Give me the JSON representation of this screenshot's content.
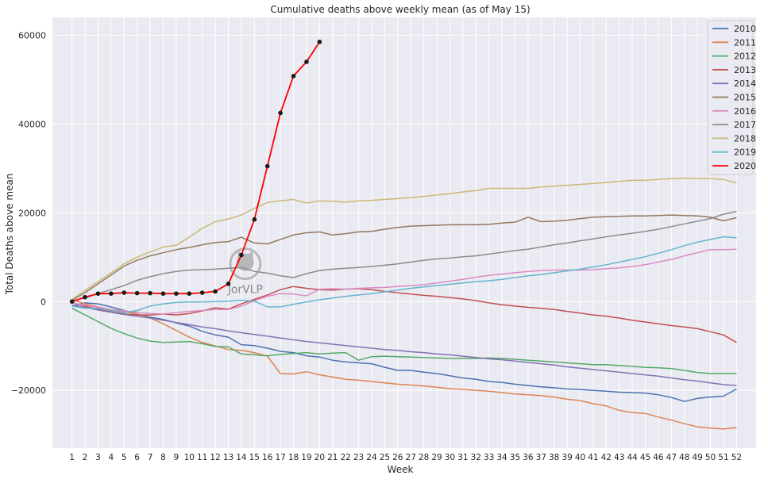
{
  "chart_data": {
    "type": "line",
    "title": "Cumulative deaths above weekly mean (as of May 15)",
    "xlabel": "Week",
    "ylabel": "Total Deaths above mean",
    "xlim": [
      -0.5,
      53.5
    ],
    "ylim": [
      -33000,
      64000
    ],
    "yticks": [
      -20000,
      0,
      20000,
      40000,
      60000
    ],
    "ytick_labels": [
      "−20000",
      "0",
      "20000",
      "40000",
      "60000"
    ],
    "grid": true,
    "legend_position": "top-right",
    "watermark": "JorVLP",
    "series": [
      {
        "name": "2010",
        "color": "#4c72b0",
        "x_start": 1,
        "values": [
          -1000,
          -300,
          -500,
          -1200,
          -2000,
          -2800,
          -3500,
          -4000,
          -4800,
          -5500,
          -6700,
          -7500,
          -8000,
          -9700,
          -9900,
          -10500,
          -11200,
          -11500,
          -12200,
          -12500,
          -13200,
          -13600,
          -13800,
          -14000,
          -14800,
          -15500,
          -15500,
          -15900,
          -16200,
          -16700,
          -17200,
          -17500,
          -18000,
          -18200,
          -18600,
          -18900,
          -19200,
          -19400,
          -19700,
          -19800,
          -20000,
          -20200,
          -20400,
          -20500,
          -20600,
          -21000,
          -21600,
          -22500,
          -21800,
          -21500,
          -21300,
          -19700
        ]
      },
      {
        "name": "2011",
        "color": "#dd8452",
        "x_start": 1,
        "values": [
          500,
          -500,
          -1200,
          -1800,
          -2300,
          -2800,
          -3700,
          -5000,
          -6500,
          -8000,
          -9200,
          -10000,
          -10800,
          -11000,
          -11500,
          -12300,
          -16200,
          -16300,
          -15800,
          -16500,
          -17000,
          -17500,
          -17700,
          -18000,
          -18300,
          -18600,
          -18800,
          -19000,
          -19300,
          -19600,
          -19800,
          -20000,
          -20200,
          -20500,
          -20800,
          -21000,
          -21200,
          -21500,
          -22000,
          -22300,
          -23000,
          -23500,
          -24500,
          -25000,
          -25200,
          -26000,
          -26700,
          -27500,
          -28200,
          -28500,
          -28700,
          -28400
        ]
      },
      {
        "name": "2012",
        "color": "#55a868",
        "x_start": 1,
        "values": [
          -1500,
          -3000,
          -4500,
          -6000,
          -7200,
          -8200,
          -8900,
          -9200,
          -9100,
          -9000,
          -9500,
          -10100,
          -10200,
          -11800,
          -12000,
          -12200,
          -11900,
          -11700,
          -11500,
          -11800,
          -11600,
          -11500,
          -13200,
          -12400,
          -12300,
          -12400,
          -12500,
          -12600,
          -12700,
          -12800,
          -12800,
          -12800,
          -12700,
          -12800,
          -13000,
          -13200,
          -13400,
          -13600,
          -13800,
          -14000,
          -14200,
          -14200,
          -14400,
          -14600,
          -14800,
          -14900,
          -15100,
          -15500,
          -16000,
          -16200,
          -16200,
          -16200
        ]
      },
      {
        "name": "2013",
        "color": "#c44e52",
        "x_start": 1,
        "values": [
          -200,
          -1000,
          -1800,
          -2300,
          -2800,
          -3000,
          -3000,
          -2800,
          -3000,
          -2700,
          -2100,
          -1400,
          -1700,
          -500,
          500,
          1500,
          2700,
          3400,
          3000,
          2700,
          2600,
          2800,
          2900,
          2700,
          2300,
          2000,
          1700,
          1400,
          1200,
          900,
          600,
          200,
          -300,
          -700,
          -1000,
          -1300,
          -1500,
          -1800,
          -2200,
          -2600,
          -3000,
          -3300,
          -3700,
          -4200,
          -4600,
          -5000,
          -5400,
          -5700,
          -6100,
          -6800,
          -7500,
          -9200
        ]
      },
      {
        "name": "2014",
        "color": "#8172b3",
        "x_start": 1,
        "values": [
          -800,
          -1300,
          -1900,
          -2400,
          -2900,
          -3300,
          -3700,
          -4200,
          -4700,
          -5200,
          -5700,
          -6100,
          -6600,
          -7000,
          -7400,
          -7800,
          -8200,
          -8600,
          -9000,
          -9300,
          -9600,
          -9900,
          -10200,
          -10500,
          -10800,
          -11000,
          -11300,
          -11500,
          -11800,
          -12000,
          -12300,
          -12600,
          -12900,
          -13100,
          -13400,
          -13700,
          -14000,
          -14300,
          -14700,
          -15000,
          -15300,
          -15600,
          -15900,
          -16200,
          -16500,
          -16800,
          -17200,
          -17600,
          -17900,
          -18300,
          -18700,
          -18900
        ]
      },
      {
        "name": "2015",
        "color": "#937860",
        "x_start": 1,
        "values": [
          300,
          2000,
          4000,
          6000,
          8000,
          9300,
          10300,
          11000,
          11700,
          12200,
          12800,
          13300,
          13500,
          14500,
          13200,
          13000,
          14000,
          15000,
          15500,
          15700,
          15000,
          15300,
          15700,
          15800,
          16300,
          16700,
          17000,
          17100,
          17200,
          17300,
          17300,
          17300,
          17400,
          17700,
          17900,
          19000,
          18000,
          18100,
          18300,
          18700,
          19000,
          19100,
          19200,
          19300,
          19300,
          19400,
          19500,
          19400,
          19300,
          19000,
          18200,
          18900
        ]
      },
      {
        "name": "2016",
        "color": "#da8bc3",
        "x_start": 1,
        "values": [
          -300,
          -800,
          -1300,
          -1800,
          -2100,
          -2400,
          -2700,
          -2800,
          -2500,
          -2200,
          -2000,
          -1800,
          -1800,
          -1000,
          200,
          1200,
          1800,
          1700,
          1300,
          2800,
          2900,
          2800,
          3000,
          3100,
          3200,
          3400,
          3600,
          3800,
          4200,
          4600,
          5000,
          5500,
          5900,
          6200,
          6500,
          6800,
          7000,
          7100,
          7100,
          7100,
          7200,
          7400,
          7600,
          7900,
          8300,
          8900,
          9500,
          10300,
          11000,
          11700,
          11700,
          11800
        ]
      },
      {
        "name": "2017",
        "color": "#8c8c8c",
        "x_start": 1,
        "values": [
          200,
          800,
          1800,
          2700,
          3600,
          4800,
          5600,
          6300,
          6800,
          7100,
          7200,
          7300,
          7500,
          7700,
          6800,
          6400,
          5800,
          5400,
          6300,
          7000,
          7300,
          7500,
          7700,
          7900,
          8200,
          8500,
          8900,
          9300,
          9600,
          9800,
          10100,
          10300,
          10700,
          11100,
          11500,
          11800,
          12300,
          12800,
          13200,
          13700,
          14100,
          14600,
          15000,
          15400,
          15800,
          16300,
          16900,
          17500,
          18100,
          18700,
          19700,
          20300
        ]
      },
      {
        "name": "2018",
        "color": "#ccb974",
        "x_start": 1,
        "values": [
          500,
          2500,
          4500,
          6500,
          8500,
          10000,
          11200,
          12300,
          12700,
          14500,
          16500,
          18000,
          18600,
          19500,
          21000,
          22300,
          22700,
          23000,
          22200,
          22700,
          22600,
          22400,
          22700,
          22800,
          23000,
          23200,
          23400,
          23700,
          24000,
          24300,
          24700,
          25000,
          25500,
          25500,
          25500,
          25500,
          25800,
          26000,
          26200,
          26400,
          26600,
          26800,
          27100,
          27300,
          27300,
          27500,
          27700,
          27800,
          27700,
          27700,
          27500,
          26700
        ]
      },
      {
        "name": "2019",
        "color": "#64b5cd",
        "x_start": 1,
        "values": [
          -1000,
          -1500,
          -1500,
          -2000,
          -2500,
          -2000,
          -1000,
          -500,
          -200,
          -100,
          -100,
          0,
          100,
          300,
          100,
          -1200,
          -1200,
          -600,
          -100,
          400,
          800,
          1200,
          1500,
          1800,
          2200,
          2600,
          3000,
          3300,
          3600,
          3900,
          4200,
          4500,
          4700,
          5000,
          5400,
          5800,
          6100,
          6500,
          6900,
          7300,
          7800,
          8300,
          8900,
          9500,
          10100,
          10900,
          11700,
          12600,
          13400,
          14000,
          14600,
          14400
        ]
      },
      {
        "name": "2020",
        "color": "#ff0000",
        "marker_color": "#1a1a1a",
        "x_start": 1,
        "values": [
          0,
          1000,
          1800,
          1800,
          2000,
          1900,
          1900,
          1800,
          1800,
          1800,
          2000,
          2300,
          4000,
          10500,
          18500,
          30500,
          42500,
          50800,
          54000,
          58500
        ]
      }
    ]
  }
}
